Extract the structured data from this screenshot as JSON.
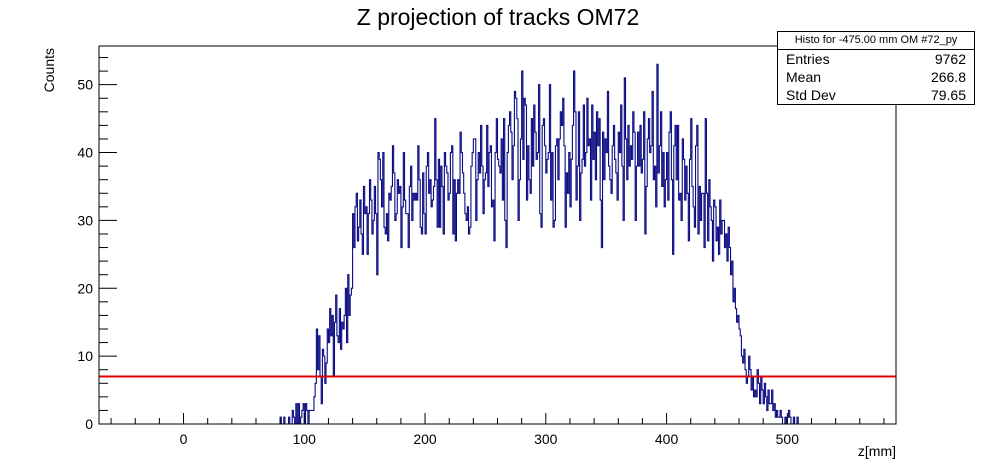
{
  "chart_data": {
    "type": "histogram",
    "title": "Z projection of tracks OM72",
    "xlabel": "z[mm]",
    "ylabel": "Counts",
    "xlim": [
      -70,
      590
    ],
    "ylim": [
      0,
      55.7
    ],
    "x_ticks": [
      0,
      100,
      200,
      300,
      400,
      500
    ],
    "y_ticks": [
      0,
      10,
      20,
      30,
      40,
      50
    ],
    "bin_width": 1,
    "bin_start": 80,
    "values": [
      1,
      0,
      0,
      1,
      0,
      0,
      0,
      1,
      0,
      0,
      2,
      1,
      0,
      3,
      0,
      3,
      0,
      1,
      2,
      3,
      0,
      3,
      2,
      0,
      2,
      2,
      2,
      2,
      4,
      6,
      14,
      8,
      13,
      7,
      3,
      11,
      10,
      6,
      9,
      14,
      12,
      17,
      13,
      16,
      7,
      15,
      19,
      13,
      12,
      17,
      11,
      15,
      14,
      16,
      20,
      12,
      22,
      16,
      19,
      20,
      31,
      26,
      32,
      34,
      27,
      29,
      33,
      28,
      25,
      35,
      31,
      32,
      25,
      31,
      36,
      33,
      28,
      30,
      35,
      31,
      22,
      40,
      39,
      36,
      32,
      40,
      29,
      28,
      31,
      27,
      34,
      33,
      35,
      41,
      37,
      30,
      31,
      36,
      34,
      35,
      26,
      32,
      40,
      33,
      31,
      31,
      26,
      35,
      38,
      30,
      34,
      33,
      34,
      33,
      41,
      36,
      29,
      28,
      37,
      31,
      28,
      38,
      40,
      34,
      36,
      32,
      33,
      35,
      45,
      36,
      29,
      39,
      29,
      38,
      35,
      28,
      40,
      38,
      37,
      33,
      34,
      40,
      41,
      28,
      36,
      27,
      34,
      36,
      34,
      43,
      40,
      37,
      34,
      31,
      30,
      32,
      28,
      29,
      38,
      40,
      42,
      42,
      30,
      36,
      40,
      37,
      44,
      38,
      31,
      36,
      37,
      44,
      35,
      40,
      41,
      32,
      33,
      27,
      40,
      45,
      39,
      38,
      37,
      42,
      33,
      45,
      30,
      26,
      40,
      44,
      46,
      43,
      36,
      41,
      49,
      48,
      45,
      30,
      36,
      42,
      52,
      39,
      48,
      47,
      33,
      41,
      36,
      34,
      45,
      38,
      47,
      43,
      39,
      40,
      50,
      31,
      29,
      44,
      45,
      41,
      37,
      39,
      40,
      50,
      33,
      40,
      29,
      30,
      41,
      42,
      36,
      42,
      46,
      44,
      48,
      41,
      29,
      37,
      34,
      40,
      32,
      39,
      44,
      52,
      46,
      33,
      38,
      46,
      30,
      37,
      39,
      47,
      38,
      40,
      48,
      41,
      42,
      33,
      47,
      39,
      43,
      36,
      46,
      41,
      45,
      33,
      26,
      43,
      36,
      42,
      40,
      49,
      38,
      36,
      34,
      41,
      44,
      39,
      37,
      33,
      43,
      40,
      47,
      38,
      30,
      51,
      42,
      36,
      44,
      38,
      41,
      39,
      46,
      43,
      30,
      38,
      43,
      38,
      44,
      37,
      39,
      46,
      28,
      35,
      42,
      45,
      40,
      41,
      49,
      36,
      38,
      32,
      53,
      37,
      41,
      46,
      35,
      40,
      32,
      36,
      40,
      33,
      43,
      46,
      36,
      25,
      41,
      44,
      36,
      44,
      33,
      34,
      30,
      42,
      39,
      33,
      38,
      34,
      27,
      39,
      45,
      35,
      32,
      29,
      41,
      44,
      28,
      35,
      30,
      34,
      34,
      26,
      45,
      34,
      27,
      36,
      32,
      30,
      24,
      33,
      32,
      27,
      29,
      25,
      33,
      28,
      30,
      30,
      26,
      28,
      24,
      29,
      26,
      22,
      24,
      18,
      20,
      17,
      15,
      16,
      14,
      13,
      10,
      9,
      11,
      8,
      6,
      7,
      10,
      8,
      5,
      7,
      4,
      5,
      4,
      8,
      6,
      3,
      7,
      5,
      3,
      6,
      4,
      2,
      5,
      3,
      3,
      5,
      2,
      3,
      1,
      2,
      1,
      1,
      2,
      1,
      0,
      0,
      1,
      0,
      1,
      2,
      1,
      0,
      0,
      1,
      0,
      0,
      1
    ],
    "threshold_line": {
      "y": 7,
      "color": "#e00000"
    },
    "line_color": "#0a0a82",
    "grid": false,
    "legend_placement": "top-right"
  },
  "stats_box": {
    "title": "Histo for -475.00 mm OM #72_py",
    "rows": [
      {
        "label": "Entries",
        "value": "9762"
      },
      {
        "label": "Mean",
        "value": "266.8"
      },
      {
        "label": "Std Dev",
        "value": "79.65"
      }
    ]
  }
}
